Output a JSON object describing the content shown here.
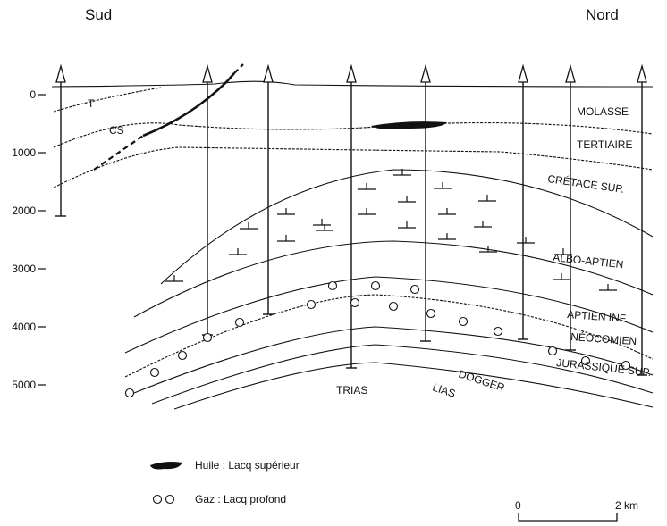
{
  "header": {
    "left": "Sud",
    "right": "Nord"
  },
  "depth_axis": {
    "lim": [
      0,
      5000
    ],
    "ticks": [
      0,
      1000,
      2000,
      3000,
      4000,
      5000
    ]
  },
  "zones": [
    "T",
    "CS",
    "TRIAS"
  ],
  "formations": [
    "MOLASSE",
    "TERTIAIRE",
    "CRÉTACÉ SUP.",
    "ALBO-APTIEN",
    "APTIEN INF.",
    "NÉOCOMIEN",
    "JURASSIQUE SUP.",
    "DOGGER",
    "LIAS"
  ],
  "legend": [
    "Huile : Lacq supérieur",
    "Gaz : Lacq profond"
  ],
  "scale": {
    "start": "0",
    "end": "2 km"
  }
}
